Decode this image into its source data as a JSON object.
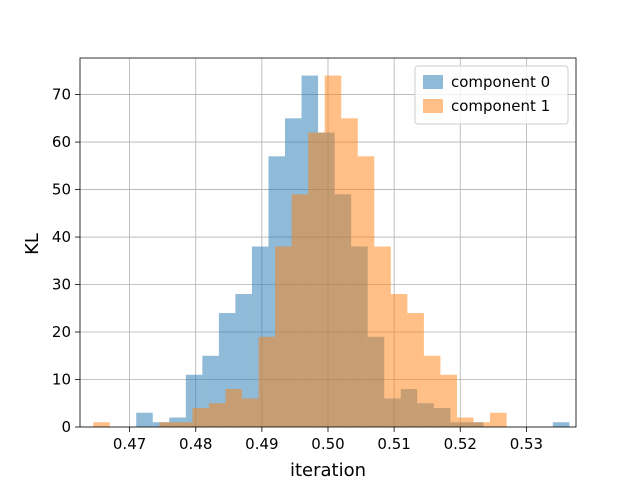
{
  "chart_data": {
    "type": "bar",
    "subtype": "histogram",
    "title": "",
    "xlabel": "iteration",
    "ylabel": "KL",
    "xlim": [
      0.4625,
      0.5375
    ],
    "ylim": [
      0,
      77.7
    ],
    "xticks": [
      "0.47",
      "0.48",
      "0.49",
      "0.50",
      "0.51",
      "0.52",
      "0.53"
    ],
    "yticks": [
      "0",
      "10",
      "20",
      "30",
      "40",
      "50",
      "60",
      "70"
    ],
    "grid": true,
    "legend": "top-right",
    "series": [
      {
        "name": "component 0",
        "color": "#1f77b4",
        "alpha": 0.5,
        "bins": [
          {
            "x0": 0.471,
            "x1": 0.4735,
            "count": 3
          },
          {
            "x0": 0.4735,
            "x1": 0.476,
            "count": 1
          },
          {
            "x0": 0.476,
            "x1": 0.4785,
            "count": 2
          },
          {
            "x0": 0.4785,
            "x1": 0.481,
            "count": 11
          },
          {
            "x0": 0.481,
            "x1": 0.4835,
            "count": 15
          },
          {
            "x0": 0.4835,
            "x1": 0.486,
            "count": 24
          },
          {
            "x0": 0.486,
            "x1": 0.4885,
            "count": 28
          },
          {
            "x0": 0.4885,
            "x1": 0.491,
            "count": 38
          },
          {
            "x0": 0.491,
            "x1": 0.4935,
            "count": 57
          },
          {
            "x0": 0.4935,
            "x1": 0.496,
            "count": 65
          },
          {
            "x0": 0.496,
            "x1": 0.4985,
            "count": 74
          },
          {
            "x0": 0.4985,
            "x1": 0.501,
            "count": 62
          },
          {
            "x0": 0.501,
            "x1": 0.5035,
            "count": 49
          },
          {
            "x0": 0.5035,
            "x1": 0.506,
            "count": 38
          },
          {
            "x0": 0.506,
            "x1": 0.5085,
            "count": 19
          },
          {
            "x0": 0.5085,
            "x1": 0.511,
            "count": 6
          },
          {
            "x0": 0.511,
            "x1": 0.5135,
            "count": 8
          },
          {
            "x0": 0.5135,
            "x1": 0.516,
            "count": 5
          },
          {
            "x0": 0.516,
            "x1": 0.5185,
            "count": 4
          },
          {
            "x0": 0.5185,
            "x1": 0.521,
            "count": 1
          },
          {
            "x0": 0.521,
            "x1": 0.5235,
            "count": 1
          },
          {
            "x0": 0.534,
            "x1": 0.5365,
            "count": 1
          }
        ]
      },
      {
        "name": "component 1",
        "color": "#ff7f0e",
        "alpha": 0.5,
        "bins": [
          {
            "x0": 0.4645,
            "x1": 0.467,
            "count": 1
          },
          {
            "x0": 0.4745,
            "x1": 0.477,
            "count": 1
          },
          {
            "x0": 0.477,
            "x1": 0.4795,
            "count": 1
          },
          {
            "x0": 0.4795,
            "x1": 0.482,
            "count": 4
          },
          {
            "x0": 0.482,
            "x1": 0.4845,
            "count": 5
          },
          {
            "x0": 0.4845,
            "x1": 0.487,
            "count": 8
          },
          {
            "x0": 0.487,
            "x1": 0.4895,
            "count": 6
          },
          {
            "x0": 0.4895,
            "x1": 0.492,
            "count": 19
          },
          {
            "x0": 0.492,
            "x1": 0.4945,
            "count": 38
          },
          {
            "x0": 0.4945,
            "x1": 0.497,
            "count": 49
          },
          {
            "x0": 0.497,
            "x1": 0.4995,
            "count": 62
          },
          {
            "x0": 0.4995,
            "x1": 0.502,
            "count": 74
          },
          {
            "x0": 0.502,
            "x1": 0.5045,
            "count": 65
          },
          {
            "x0": 0.5045,
            "x1": 0.507,
            "count": 57
          },
          {
            "x0": 0.507,
            "x1": 0.5095,
            "count": 38
          },
          {
            "x0": 0.5095,
            "x1": 0.512,
            "count": 28
          },
          {
            "x0": 0.512,
            "x1": 0.5145,
            "count": 24
          },
          {
            "x0": 0.5145,
            "x1": 0.517,
            "count": 15
          },
          {
            "x0": 0.517,
            "x1": 0.5195,
            "count": 11
          },
          {
            "x0": 0.5195,
            "x1": 0.522,
            "count": 2
          },
          {
            "x0": 0.522,
            "x1": 0.5245,
            "count": 1
          },
          {
            "x0": 0.5245,
            "x1": 0.527,
            "count": 3
          }
        ]
      }
    ]
  }
}
